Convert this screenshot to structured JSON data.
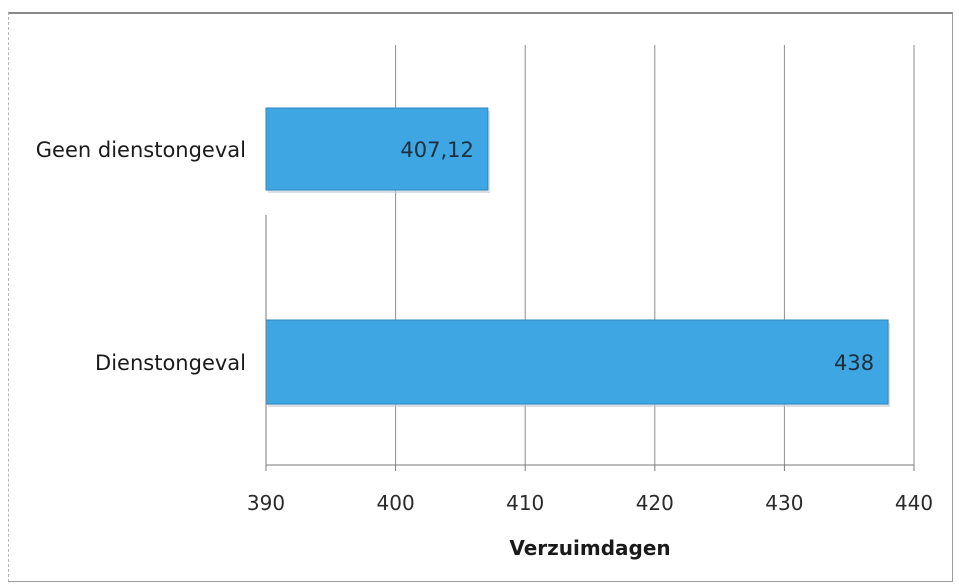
{
  "chart_data": {
    "type": "bar",
    "orientation": "horizontal",
    "categories": [
      "Geen dienstongeval",
      "Dienstongeval"
    ],
    "values": [
      407.12,
      438
    ],
    "data_labels": [
      "407,12",
      "438"
    ],
    "xlabel": "Verzuimdagen",
    "xlim": [
      390,
      440
    ],
    "xticks": [
      390,
      400,
      410,
      420,
      430,
      440
    ],
    "xtick_labels": [
      "390",
      "400",
      "410",
      "420",
      "430",
      "440"
    ],
    "grid": "vertical",
    "bar_color": "#3ea6e3",
    "bar_edge_color": "#2f86bd"
  }
}
